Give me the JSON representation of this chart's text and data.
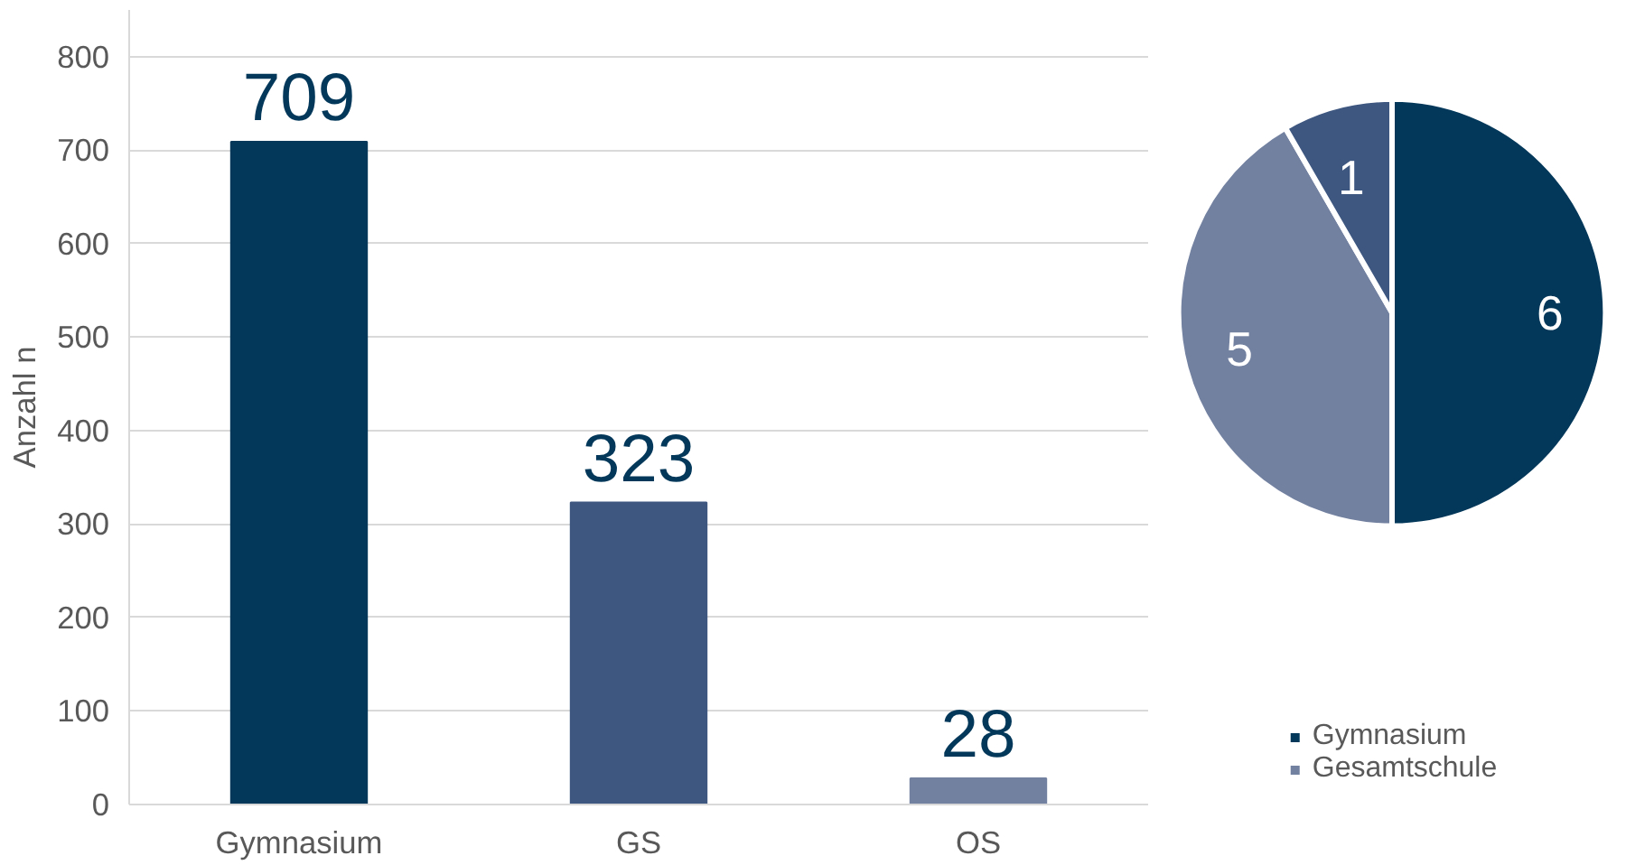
{
  "chart_data": [
    {
      "type": "bar",
      "ylabel": "Anzahl n",
      "categories": [
        "Gymnasium",
        "GS",
        "OS"
      ],
      "values": [
        709,
        323,
        28
      ],
      "colors": [
        "#03385a",
        "#3e5780",
        "#7381a1"
      ],
      "ylim": [
        0,
        850
      ],
      "yticks": [
        0,
        100,
        200,
        300,
        400,
        500,
        600,
        700,
        800
      ],
      "grid": "y",
      "data_labels": true
    },
    {
      "type": "pie",
      "categories": [
        "Gymnasium",
        "Gesamtschule",
        null
      ],
      "values": [
        6,
        5,
        1
      ],
      "colors": [
        "#03385a",
        "#7381a1",
        "#3e5780"
      ],
      "data_labels": true,
      "legend": "bottom"
    }
  ]
}
